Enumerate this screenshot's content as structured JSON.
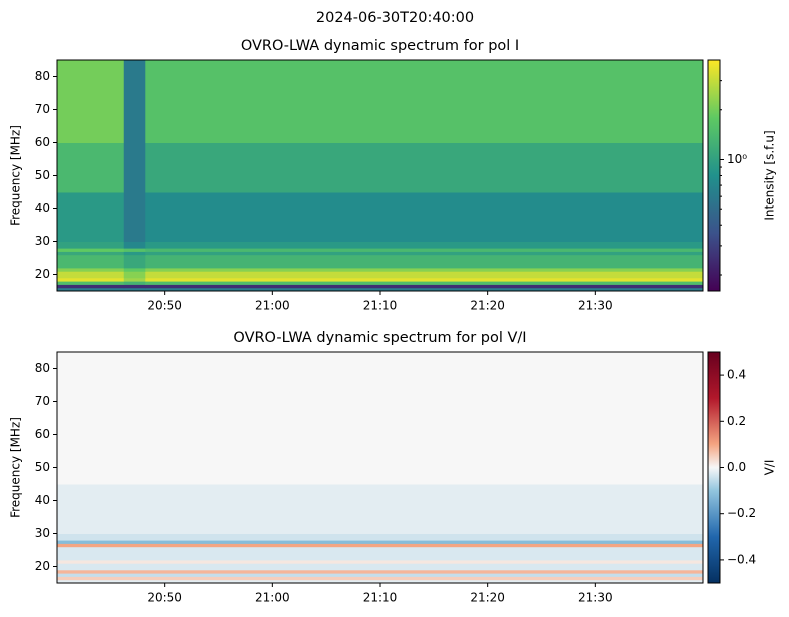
{
  "title": "2024-06-30T20:40:00",
  "chart_data": [
    {
      "type": "heatmap",
      "title": "OVRO-LWA dynamic spectrum for pol I",
      "ylabel": "Frequency [MHz]",
      "xlim": [
        0,
        60
      ],
      "xticks": [
        {
          "value": 10,
          "label": "20:50"
        },
        {
          "value": 20,
          "label": "21:00"
        },
        {
          "value": 30,
          "label": "21:10"
        },
        {
          "value": 40,
          "label": "21:20"
        },
        {
          "value": 50,
          "label": "21:30"
        }
      ],
      "ylim": [
        15,
        85
      ],
      "yticks": [
        20,
        30,
        40,
        50,
        60,
        70,
        80
      ],
      "x_bins": [
        0,
        6.2,
        8.2,
        60
      ],
      "y_bins": [
        15,
        16,
        17,
        18,
        19,
        21,
        22,
        26,
        27,
        28,
        30,
        45,
        60,
        85
      ],
      "values": [
        [
          0.6,
          0.6,
          0.6
        ],
        [
          0.25,
          0.25,
          0.25
        ],
        [
          1.5,
          1.3,
          1.5
        ],
        [
          3.5,
          2.5,
          3.5
        ],
        [
          3.0,
          2.2,
          3.0
        ],
        [
          2.2,
          1.8,
          2.2
        ],
        [
          1.4,
          1.1,
          1.3
        ],
        [
          1.1,
          0.9,
          1.0
        ],
        [
          1.8,
          1.6,
          1.4
        ],
        [
          1.0,
          0.7,
          0.9
        ],
        [
          0.9,
          0.6,
          0.75
        ],
        [
          1.4,
          0.6,
          1.1
        ],
        [
          2.0,
          0.6,
          1.6
        ]
      ],
      "colormap": "viridis",
      "colorbar": {
        "label": "Intensity [s.f.u]",
        "log": true,
        "lim": [
          0.16,
          4
        ],
        "ticks": [
          {
            "value": 1,
            "label": "10⁰"
          }
        ],
        "minor_ticks": [
          0.2,
          0.3,
          0.4,
          0.5,
          0.6,
          0.7,
          0.8,
          0.9,
          2,
          3
        ]
      }
    },
    {
      "type": "heatmap",
      "title": "OVRO-LWA dynamic spectrum for pol V/I",
      "ylabel": "Frequency [MHz]",
      "xlim": [
        0,
        60
      ],
      "xticks": [
        {
          "value": 10,
          "label": "20:50"
        },
        {
          "value": 20,
          "label": "21:00"
        },
        {
          "value": 30,
          "label": "21:10"
        },
        {
          "value": 40,
          "label": "21:20"
        },
        {
          "value": 50,
          "label": "21:30"
        }
      ],
      "ylim": [
        15,
        85
      ],
      "yticks": [
        20,
        30,
        40,
        50,
        60,
        70,
        80
      ],
      "x_bins": [
        0,
        60
      ],
      "y_bins": [
        15,
        16,
        17,
        18,
        19,
        21,
        22,
        26,
        27,
        28,
        30,
        45,
        60,
        85
      ],
      "values": [
        [
          -0.02
        ],
        [
          0.05
        ],
        [
          -0.05
        ],
        [
          0.08
        ],
        [
          -0.03
        ],
        [
          0.02
        ],
        [
          -0.03
        ],
        [
          0.1
        ],
        [
          -0.12
        ],
        [
          -0.04
        ],
        [
          -0.02
        ],
        [
          0
        ],
        [
          0
        ]
      ],
      "colormap": "RdBu_r",
      "colorbar": {
        "label": "V/I",
        "log": false,
        "lim": [
          -0.5,
          0.5
        ],
        "ticks": [
          {
            "value": 0.4,
            "label": "0.4"
          },
          {
            "value": 0.2,
            "label": "0.2"
          },
          {
            "value": 0,
            "label": "0.0"
          },
          {
            "value": -0.2,
            "label": "−0.2"
          },
          {
            "value": -0.4,
            "label": "−0.4"
          }
        ],
        "minor_ticks": []
      }
    }
  ]
}
